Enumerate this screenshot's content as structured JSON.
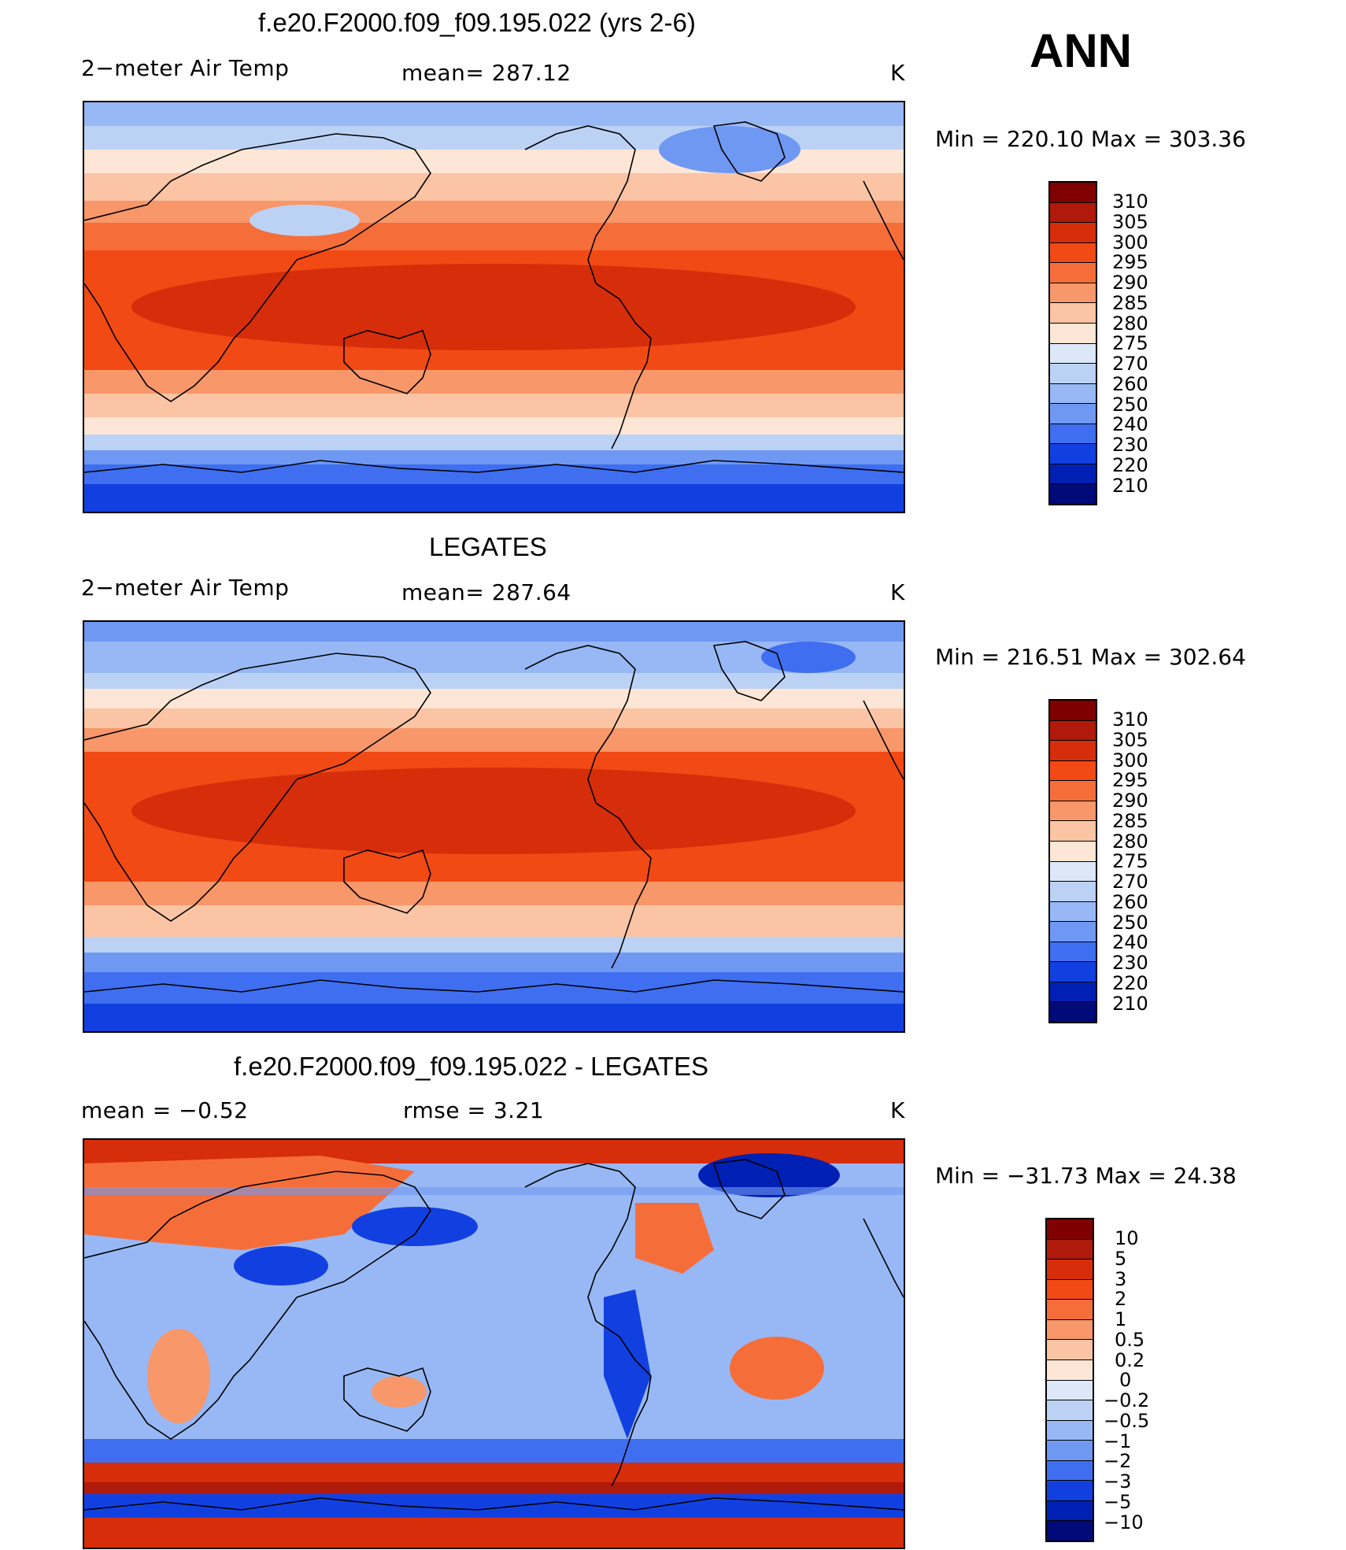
{
  "season": "ANN",
  "units": "K",
  "variable": "2−meter Air Temp",
  "temp_levels": [
    "310",
    "305",
    "300",
    "295",
    "290",
    "285",
    "280",
    "275",
    "270",
    "260",
    "250",
    "240",
    "230",
    "220",
    "210"
  ],
  "temp_colors": [
    "#800000",
    "#b01a0a",
    "#d62d0a",
    "#f24a14",
    "#f56e3a",
    "#f7976a",
    "#fbc4a4",
    "#fde6d6",
    "#dce8f8",
    "#bcd2f5",
    "#98b8f5",
    "#6f98f2",
    "#3f6ef0",
    "#1240e0",
    "#0020b4",
    "#000a78"
  ],
  "diff_levels": [
    "10",
    "5",
    "3",
    "2",
    "1",
    "0.5",
    "0.2",
    "0",
    "−0.2",
    "−0.5",
    "−1",
    "−2",
    "−3",
    "−5",
    "−10"
  ],
  "diff_colors": [
    "#800000",
    "#b01a0a",
    "#d62d0a",
    "#f24a14",
    "#f56e3a",
    "#f7976a",
    "#fbc4a4",
    "#fde6d6",
    "#dce8f8",
    "#bcd2f5",
    "#98b8f5",
    "#6f98f2",
    "#3f6ef0",
    "#1240e0",
    "#0020b4",
    "#000a78"
  ],
  "panels": [
    {
      "kind": "temp",
      "title": "f.e20.F2000.f09_f09.195.022 (yrs 2-6)",
      "left_label": "2−meter Air Temp",
      "center_label": "mean=  287.12",
      "right_label": "K",
      "minmax": "Min  =  220.10  Max  =  303.36"
    },
    {
      "kind": "temp",
      "title": "LEGATES",
      "left_label": "2−meter Air Temp",
      "center_label": "mean=  287.64",
      "right_label": "K",
      "minmax": "Min  =  216.51  Max  =  302.64"
    },
    {
      "kind": "diff",
      "title": "f.e20.F2000.f09_f09.195.022 - LEGATES",
      "left_label": "mean  =    −0.52",
      "center_label": "rmse  =     3.21",
      "right_label": "K",
      "minmax": "Min  =  −31.73  Max  =    24.38"
    }
  ]
}
